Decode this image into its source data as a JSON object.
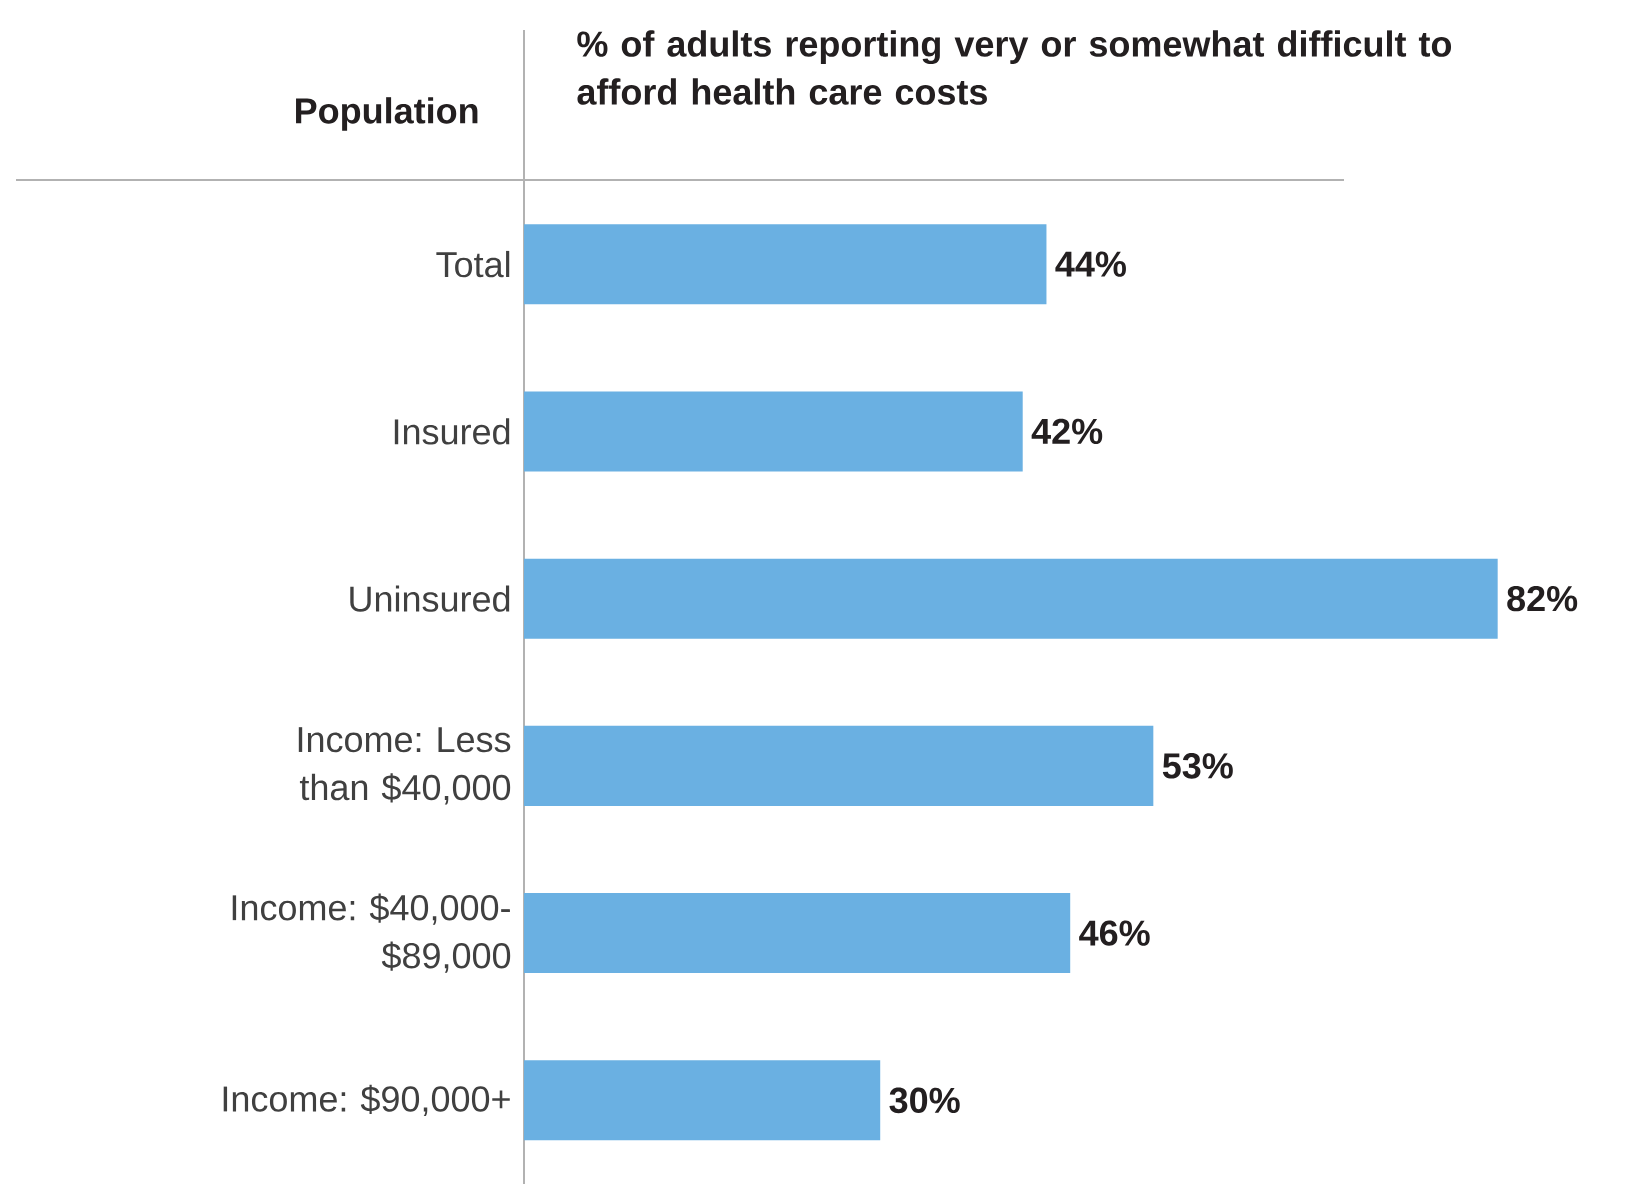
{
  "chart_data": {
    "type": "bar",
    "orientation": "horizontal",
    "title": "% of adults reporting very or somewhat difficult to afford health care costs",
    "ylabel": "Population",
    "categories": [
      "Total",
      "Insured",
      "Uninsured",
      "Income: Less than $40,000",
      "Income: $40,000-$89,000",
      "Income: $90,000+"
    ],
    "values": [
      44,
      42,
      82,
      53,
      46,
      30
    ],
    "value_labels": [
      "44%",
      "42%",
      "82%",
      "53%",
      "46%",
      "30%"
    ],
    "color": "#6ab0e2"
  }
}
